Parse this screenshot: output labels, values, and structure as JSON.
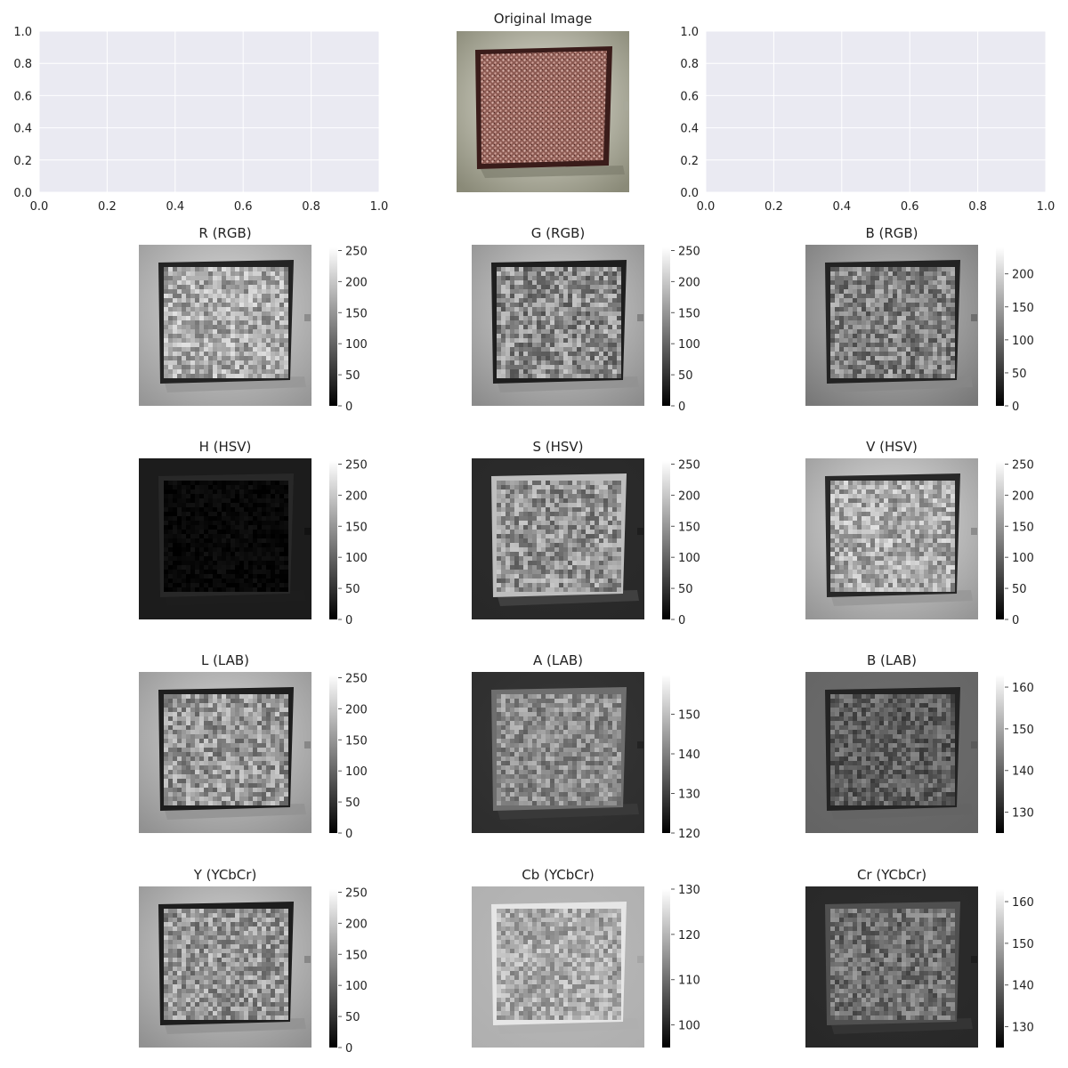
{
  "figure": {
    "empty_axes": {
      "xticks": [
        "0.0",
        "0.2",
        "0.4",
        "0.6",
        "0.8",
        "1.0"
      ],
      "yticks": [
        "0.0",
        "0.2",
        "0.4",
        "0.6",
        "0.8",
        "1.0"
      ],
      "background": "#eaeaf2",
      "grid_color": "#ffffff"
    },
    "original_image_title": "Original Image"
  },
  "chart_data": [
    {
      "type": "scatter",
      "role": "empty-axes",
      "xlim": [
        0,
        1
      ],
      "ylim": [
        0,
        1
      ],
      "grid": true,
      "series": []
    },
    {
      "type": "image",
      "title": "Original Image",
      "colormap": "rgb"
    },
    {
      "type": "scatter",
      "role": "empty-axes",
      "xlim": [
        0,
        1
      ],
      "ylim": [
        0,
        1
      ],
      "grid": true,
      "series": []
    },
    {
      "type": "heatmap",
      "title": "R (RGB)",
      "colormap": "gray",
      "colorbar_ticks": [
        "0",
        "50",
        "100",
        "150",
        "200",
        "250"
      ],
      "colorbar_range": [
        0,
        255
      ],
      "style": {
        "bg_center": 220,
        "bg_edge": 150,
        "frame": 35,
        "field": 170,
        "field_var": 55,
        "bottom_strip": 150
      }
    },
    {
      "type": "heatmap",
      "title": "G (RGB)",
      "colormap": "gray",
      "colorbar_ticks": [
        "0",
        "50",
        "100",
        "150",
        "200",
        "250"
      ],
      "colorbar_range": [
        0,
        255
      ],
      "style": {
        "bg_center": 215,
        "bg_edge": 140,
        "frame": 30,
        "field": 140,
        "field_var": 60,
        "bottom_strip": 145
      }
    },
    {
      "type": "heatmap",
      "title": "B (RGB)",
      "colormap": "gray",
      "colorbar_ticks": [
        "0",
        "50",
        "100",
        "150",
        "200"
      ],
      "colorbar_range": [
        0,
        240
      ],
      "style": {
        "bg_center": 195,
        "bg_edge": 120,
        "frame": 35,
        "field": 130,
        "field_var": 55,
        "bottom_strip": 135
      }
    },
    {
      "type": "heatmap",
      "title": "H (HSV)",
      "colormap": "gray",
      "colorbar_ticks": [
        "0",
        "50",
        "100",
        "150",
        "200",
        "250"
      ],
      "colorbar_range": [
        0,
        255
      ],
      "style": {
        "bg_center": 28,
        "bg_edge": 28,
        "frame": 40,
        "field": 8,
        "field_var": 10,
        "bottom_strip": 30
      }
    },
    {
      "type": "heatmap",
      "title": "S (HSV)",
      "colormap": "gray",
      "colorbar_ticks": [
        "0",
        "50",
        "100",
        "150",
        "200",
        "250"
      ],
      "colorbar_range": [
        0,
        255
      ],
      "style": {
        "bg_center": 45,
        "bg_edge": 40,
        "frame": 190,
        "field": 145,
        "field_var": 55,
        "bottom_strip": 70
      }
    },
    {
      "type": "heatmap",
      "title": "V (HSV)",
      "colormap": "gray",
      "colorbar_ticks": [
        "0",
        "50",
        "100",
        "150",
        "200",
        "250"
      ],
      "colorbar_range": [
        0,
        255
      ],
      "style": {
        "bg_center": 225,
        "bg_edge": 150,
        "frame": 40,
        "field": 170,
        "field_var": 55,
        "bottom_strip": 150
      }
    },
    {
      "type": "heatmap",
      "title": "L (LAB)",
      "colormap": "gray",
      "colorbar_ticks": [
        "0",
        "50",
        "100",
        "150",
        "200",
        "250"
      ],
      "colorbar_range": [
        0,
        255
      ],
      "style": {
        "bg_center": 215,
        "bg_edge": 145,
        "frame": 30,
        "field": 150,
        "field_var": 55,
        "bottom_strip": 145
      }
    },
    {
      "type": "heatmap",
      "title": "A (LAB)",
      "colormap": "gray",
      "colorbar_ticks": [
        "120",
        "130",
        "140",
        "150"
      ],
      "colorbar_range": [
        120,
        160
      ],
      "style": {
        "bg_center": 55,
        "bg_edge": 45,
        "frame": 110,
        "field": 140,
        "field_var": 45,
        "bottom_strip": 60
      }
    },
    {
      "type": "heatmap",
      "title": "B (LAB)",
      "colormap": "gray",
      "colorbar_ticks": [
        "130",
        "140",
        "150",
        "160"
      ],
      "colorbar_range": [
        125,
        163
      ],
      "style": {
        "bg_center": 110,
        "bg_edge": 100,
        "frame": 35,
        "field": 95,
        "field_var": 40,
        "bottom_strip": 100
      }
    },
    {
      "type": "heatmap",
      "title": "Y (YCbCr)",
      "colormap": "gray",
      "colorbar_ticks": [
        "0",
        "50",
        "100",
        "150",
        "200",
        "250"
      ],
      "colorbar_range": [
        0,
        255
      ],
      "style": {
        "bg_center": 215,
        "bg_edge": 145,
        "frame": 30,
        "field": 150,
        "field_var": 55,
        "bottom_strip": 145
      }
    },
    {
      "type": "heatmap",
      "title": "Cb (YCbCr)",
      "colormap": "gray",
      "colorbar_ticks": [
        "100",
        "110",
        "120",
        "130"
      ],
      "colorbar_range": [
        95,
        130
      ],
      "style": {
        "bg_center": 185,
        "bg_edge": 175,
        "frame": 230,
        "field": 170,
        "field_var": 45,
        "bottom_strip": 175
      }
    },
    {
      "type": "heatmap",
      "title": "Cr (YCbCr)",
      "colormap": "gray",
      "colorbar_ticks": [
        "130",
        "140",
        "150",
        "160"
      ],
      "colorbar_range": [
        125,
        163
      ],
      "style": {
        "bg_center": 45,
        "bg_edge": 40,
        "frame": 80,
        "field": 110,
        "field_var": 45,
        "bottom_strip": 55
      }
    }
  ]
}
